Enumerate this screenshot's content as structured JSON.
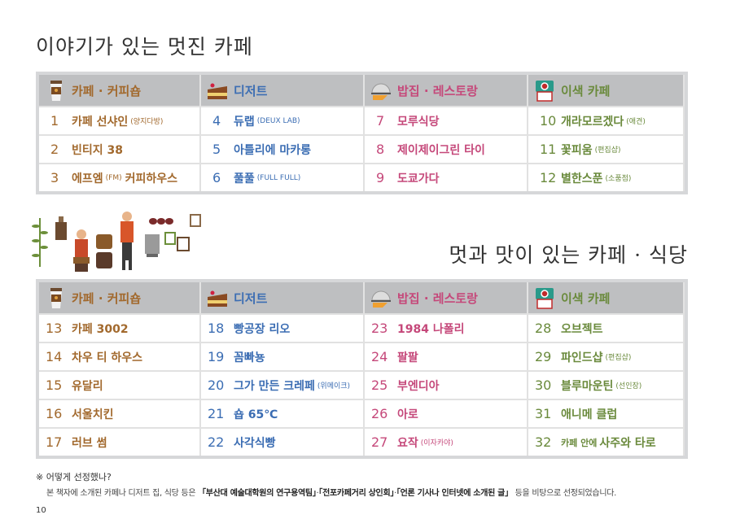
{
  "title1": "이야기가 있는 멋진 카페",
  "title2": "멋과 맛이 있는 카페 · 식당",
  "colors": {
    "cafe": "#a2692d",
    "dessert": "#3b6db3",
    "restaurant": "#c5487a",
    "unique": "#6a8a3c",
    "header_bg": "#bebfc1"
  },
  "headers": [
    {
      "label": "카페 · 커피숍",
      "icon": "coffee-cup-icon"
    },
    {
      "label": "디저트",
      "icon": "cake-icon"
    },
    {
      "label": "밥집 · 레스토랑",
      "icon": "cloche-icon"
    },
    {
      "label": "이색 카페",
      "icon": "camera-icon"
    }
  ],
  "table1": [
    [
      {
        "num": "1",
        "name": "카페 선샤인",
        "sub": "(양지다방)"
      },
      {
        "num": "2",
        "name": "빈티지 38"
      },
      {
        "num": "3",
        "name": "에프엠",
        "sub": "(FM)",
        "name2": "커피하우스"
      }
    ],
    [
      {
        "num": "4",
        "name": "듀랩",
        "sub": "(DEUX LAB)"
      },
      {
        "num": "5",
        "name": "아틀리에 마카롱"
      },
      {
        "num": "6",
        "name": "풀풀",
        "sub": "(FULL FULL)"
      }
    ],
    [
      {
        "num": "7",
        "name": "모루식당"
      },
      {
        "num": "8",
        "name": "제이제이그린 타이"
      },
      {
        "num": "9",
        "name": "도쿄가다"
      }
    ],
    [
      {
        "num": "10",
        "name": "개라모르겠다",
        "sub": "(애견)"
      },
      {
        "num": "11",
        "name": "꽃피움",
        "sub": "(편집샵)"
      },
      {
        "num": "12",
        "name": "별한스푼",
        "sub": "(소품점)"
      }
    ]
  ],
  "table2": [
    [
      {
        "num": "13",
        "name": "카페 3002"
      },
      {
        "num": "14",
        "name": "차우 티 하우스"
      },
      {
        "num": "15",
        "name": "유달리"
      },
      {
        "num": "16",
        "name": "서울치킨"
      },
      {
        "num": "17",
        "name": "러브 썸"
      }
    ],
    [
      {
        "num": "18",
        "name": "빵공장 리오"
      },
      {
        "num": "19",
        "name": "꼼빠뇽"
      },
      {
        "num": "20",
        "name": "그가 만든 크레페",
        "sub": "(위메이크)"
      },
      {
        "num": "21",
        "name": "숍 65℃"
      },
      {
        "num": "22",
        "name": "사각식빵"
      }
    ],
    [
      {
        "num": "23",
        "name": "1984 나폴리"
      },
      {
        "num": "24",
        "name": "팔팔"
      },
      {
        "num": "25",
        "name": "부엔디아"
      },
      {
        "num": "26",
        "name": "아로"
      },
      {
        "num": "27",
        "name": "요작",
        "sub": "(이자카야)"
      }
    ],
    [
      {
        "num": "28",
        "name": "오브젝트"
      },
      {
        "num": "29",
        "name": "파인드샵",
        "sub": "(편집샵)"
      },
      {
        "num": "30",
        "name": "블루마운틴",
        "sub": "(선인장)"
      },
      {
        "num": "31",
        "name": "애니메 클럽"
      },
      {
        "num": "32",
        "pre": "카페 안에",
        "name": "사주와 타로"
      }
    ]
  ],
  "note": {
    "heading": "※ 어떻게 선정했나?",
    "parts": [
      "본 책자에 소개된 카페나 디저트 집, 식당 등은 ",
      "「부산대 예술대학원의 연구용역팀」",
      "·",
      "「전포카페거리 상인회」",
      "·",
      "「언론 기사나 인터넷에 소개된 글」",
      " 등을 비탕으로 선정되었습니다."
    ]
  },
  "page_number": "10"
}
